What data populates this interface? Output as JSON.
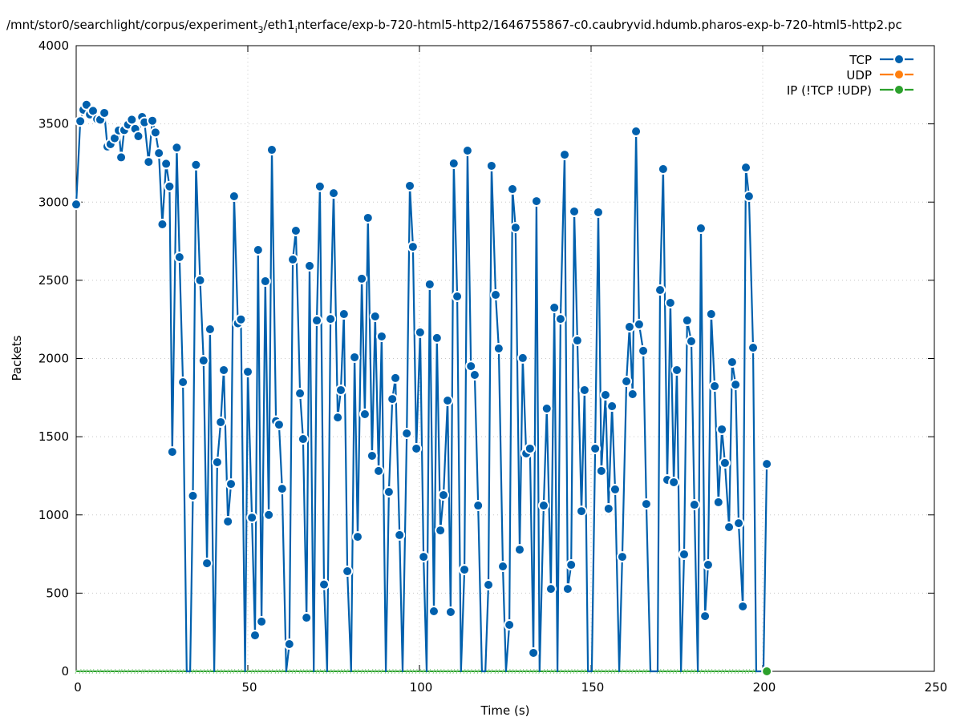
{
  "chart_data": {
    "type": "line",
    "title_parts": [
      "/mnt/stor0/searchlight/corpus/experiment",
      "3",
      "/eth1",
      "i",
      "nterface/exp-b-720-html5-http2/1646755867-c0.caubryvid.hdumb.pharos-exp-b-720-html5-http2.pc"
    ],
    "xlabel": "Time (s)",
    "ylabel": "Packets",
    "xlim": [
      0,
      250
    ],
    "ylim": [
      0,
      4000
    ],
    "xticks": [
      "0",
      "50",
      "100",
      "150",
      "200",
      "250"
    ],
    "yticks": [
      "0",
      "500",
      "1000",
      "1500",
      "2000",
      "2500",
      "3000",
      "3500",
      "4000"
    ],
    "grid": true,
    "legend_position": "top-right",
    "series": [
      {
        "name": "TCP",
        "color": "#0060ad",
        "x": [
          0,
          1.2,
          2.1,
          3.0,
          4.0,
          4.9,
          6.1,
          7.0,
          8.2,
          9.1,
          10.0,
          11.2,
          12.4,
          13.1,
          14.0,
          15.1,
          16.2,
          17.2,
          18.1,
          19.2,
          19.9,
          21.1,
          22.2,
          23.1,
          24.1,
          25.1,
          26.2,
          27.2,
          28.0,
          29.3,
          30.1,
          31.1,
          32.2,
          33.2,
          34.0,
          34.9,
          36.1,
          37.1,
          38.1,
          39.0,
          40.2,
          41.1,
          42.1,
          43.0,
          44.2,
          45.1,
          46.0,
          47.1,
          48.0,
          49.2,
          50.0,
          51.2,
          52.1,
          53.0,
          54.0,
          55.1,
          56.1,
          57.0,
          58.2,
          59.1,
          60.0,
          61.2,
          62.1,
          63.1,
          64.0,
          65.2,
          66.1,
          67.1,
          68.0,
          69.2,
          70.1,
          71.0,
          72.2,
          73.1,
          74.1,
          75.0,
          76.2,
          77.1,
          78.0,
          79.0,
          80.1,
          81.1,
          82.0,
          83.2,
          84.1,
          85.0,
          86.2,
          87.1,
          88.1,
          89.0,
          90.2,
          91.1,
          92.1,
          93.0,
          94.2,
          95.1,
          96.3,
          97.2,
          98.1,
          99.1,
          100.2,
          101.2,
          102.1,
          103.0,
          104.2,
          105.1,
          106.1,
          107.0,
          108.2,
          109.1,
          110.0,
          111.0,
          112.1,
          113.1,
          114.0,
          115.0,
          116.1,
          117.1,
          118.2,
          119.2,
          120.1,
          121.0,
          122.2,
          123.1,
          124.3,
          125.2,
          126.2,
          127.1,
          128.0,
          129.2,
          130.1,
          131.1,
          132.2,
          133.2,
          134.1,
          135.0,
          136.2,
          137.1,
          138.3,
          139.3,
          140.2,
          141.1,
          142.3,
          143.2,
          144.2,
          145.1,
          146.0,
          147.2,
          148.1,
          149.1,
          150.2,
          151.2,
          152.1,
          153.0,
          154.2,
          155.1,
          156.1,
          157.0,
          158.2,
          159.1,
          160.3,
          161.2,
          162.1,
          163.1,
          164.0,
          165.2,
          166.1,
          167.3,
          169.4,
          170.1,
          171.0,
          172.2,
          173.1,
          174.1,
          175.0,
          176.2,
          177.1,
          178.0,
          179.2,
          180.1,
          181.1,
          182.0,
          183.2,
          184.1,
          185.0,
          186.0,
          187.1,
          188.1,
          189.0,
          190.2,
          191.1,
          192.1,
          193.0,
          194.2,
          195.1,
          196.0,
          197.2,
          198.1,
          200.2,
          201.2
        ],
        "y": [
          2985,
          3517,
          3590,
          3622,
          3560,
          3583,
          3530,
          3527,
          3570,
          3355,
          3370,
          3408,
          3458,
          3286,
          3460,
          3495,
          3527,
          3468,
          3421,
          3544,
          3510,
          3257,
          3520,
          3445,
          3313,
          2858,
          3245,
          3100,
          1403,
          3348,
          2648,
          1849,
          0,
          0,
          1122,
          3238,
          2500,
          1987,
          691,
          2187,
          0,
          1337,
          1593,
          1926,
          958,
          1198,
          3037,
          2225,
          2250,
          0,
          1915,
          983,
          230,
          2694,
          318,
          2494,
          1000,
          3334,
          1600,
          1577,
          1167,
          0,
          174,
          2633,
          2817,
          1777,
          1485,
          343,
          2592,
          0,
          2243,
          3100,
          555,
          0,
          2253,
          3057,
          1623,
          1798,
          2284,
          640,
          0,
          2008,
          860,
          2510,
          1644,
          2899,
          1378,
          2269,
          1281,
          2141,
          0,
          1147,
          1741,
          1875,
          871,
          0,
          1521,
          3104,
          2714,
          1424,
          2167,
          732,
          0,
          2474,
          384,
          2131,
          901,
          1127,
          1731,
          379,
          3247,
          2397,
          0,
          650,
          3329,
          1951,
          1895,
          1060,
          0,
          0,
          553,
          3232,
          2407,
          2064,
          671,
          0,
          297,
          3083,
          2837,
          778,
          2003,
          1393,
          1424,
          118,
          3006,
          0,
          1060,
          1680,
          527,
          2325,
          0,
          2253,
          3303,
          527,
          681,
          2940,
          2115,
          1024,
          1798,
          0,
          0,
          1424,
          2935,
          1281,
          1767,
          1040,
          1695,
          1163,
          0,
          732,
          1854,
          2202,
          1772,
          3452,
          2218,
          2049,
          1070,
          0,
          0,
          2438,
          3211,
          1224,
          2356,
          1209,
          1926,
          0,
          748,
          2243,
          2110,
          1065,
          0,
          2832,
          353,
          681,
          2284,
          1823,
          1081,
          1547,
          1332,
          922,
          1977,
          1833,
          947,
          415,
          3221,
          3037,
          2069,
          0,
          0,
          1326
        ]
      },
      {
        "name": "UDP",
        "color": "#ff7f0e",
        "x": [],
        "y": []
      },
      {
        "name": "IP (!TCP  !UDP)",
        "color": "#2ca02c",
        "x": [
          201.2
        ],
        "y": [
          0
        ]
      }
    ]
  }
}
